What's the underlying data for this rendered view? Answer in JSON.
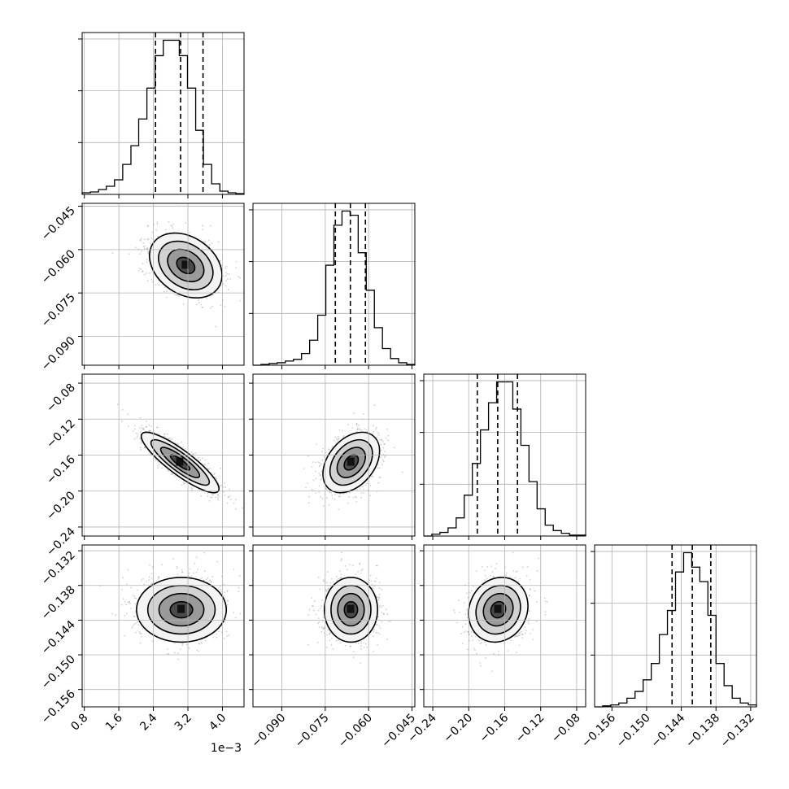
{
  "chart_data": {
    "type": "corner",
    "title": "",
    "offset_text": "1e−3",
    "parameters": [
      {
        "range": [
          0.00075,
          0.0045
        ],
        "ticks": [
          0.0008,
          0.0016,
          0.0024,
          0.0032,
          0.004
        ],
        "tick_labels": [
          "0.8",
          "1.6",
          "2.4",
          "3.2",
          "4.0"
        ],
        "quantiles": [
          0.00245,
          0.00303,
          0.00355
        ],
        "hist_bins": [
          0.00075,
          0.00094,
          0.00113,
          0.00131,
          0.0015,
          0.00169,
          0.00188,
          0.00206,
          0.00225,
          0.00244,
          0.00263,
          0.00281,
          0.003,
          0.00319,
          0.00338,
          0.00356,
          0.00375,
          0.00394,
          0.00413,
          0.00431,
          0.0045
        ],
        "hist_counts": [
          2,
          3,
          6,
          10,
          18,
          37,
          60,
          93,
          131,
          171,
          190,
          190,
          171,
          131,
          79,
          37,
          13,
          4,
          2,
          1
        ]
      },
      {
        "range": [
          -0.1,
          -0.044
        ],
        "ticks": [
          -0.09,
          -0.075,
          -0.06,
          -0.045
        ],
        "tick_labels": [
          "−0.090",
          "−0.075",
          "−0.060",
          "−0.045"
        ],
        "quantiles": [
          -0.0715,
          -0.0663,
          -0.0611
        ],
        "hist_bins": [
          -0.1,
          -0.0972,
          -0.0944,
          -0.0916,
          -0.0888,
          -0.086,
          -0.0832,
          -0.0804,
          -0.0776,
          -0.0748,
          -0.072,
          -0.0692,
          -0.0664,
          -0.0636,
          -0.0608,
          -0.058,
          -0.0552,
          -0.0524,
          -0.0496,
          -0.0468,
          -0.044
        ],
        "hist_counts": [
          0,
          1,
          2,
          3,
          5,
          7,
          14,
          30,
          60,
          120,
          168,
          185,
          180,
          135,
          90,
          45,
          20,
          8,
          3,
          1
        ]
      },
      {
        "range": [
          -0.25,
          -0.07
        ],
        "ticks": [
          -0.24,
          -0.2,
          -0.16,
          -0.12,
          -0.08
        ],
        "tick_labels": [
          "−0.24",
          "−0.20",
          "−0.16",
          "−0.12",
          "−0.08"
        ],
        "quantiles": [
          -0.1905,
          -0.1678,
          -0.1458
        ],
        "hist_bins": [
          -0.25,
          -0.241,
          -0.232,
          -0.223,
          -0.214,
          -0.205,
          -0.196,
          -0.187,
          -0.178,
          -0.169,
          -0.16,
          -0.151,
          -0.142,
          -0.133,
          -0.124,
          -0.115,
          -0.106,
          -0.097,
          -0.088,
          -0.079,
          -0.07
        ],
        "hist_counts": [
          0,
          2,
          4,
          9,
          20,
          45,
          80,
          117,
          147,
          170,
          170,
          140,
          100,
          60,
          30,
          12,
          6,
          3,
          1,
          1
        ]
      },
      {
        "range": [
          -0.159,
          -0.131
        ],
        "ticks": [
          -0.156,
          -0.15,
          -0.144,
          -0.138,
          -0.132
        ],
        "tick_labels": [
          "−0.156",
          "−0.150",
          "−0.144",
          "−0.138",
          "−0.132"
        ],
        "quantiles": [
          -0.1456,
          -0.1421,
          -0.1389
        ],
        "hist_bins": [
          -0.159,
          -0.1576,
          -0.1562,
          -0.1548,
          -0.1534,
          -0.152,
          -0.1506,
          -0.1492,
          -0.1478,
          -0.1464,
          -0.145,
          -0.1436,
          -0.1422,
          -0.1408,
          -0.1394,
          -0.138,
          -0.1366,
          -0.1352,
          -0.1338,
          -0.1324,
          -0.131
        ],
        "hist_counts": [
          0,
          1,
          2,
          4,
          9,
          16,
          28,
          45,
          75,
          100,
          140,
          160,
          145,
          130,
          95,
          45,
          22,
          9,
          4,
          2
        ]
      }
    ],
    "pairs": [
      {
        "x": 0,
        "y": 1,
        "center": [
          0.00315,
          -0.0655
        ],
        "spread": [
          0.00042,
          0.0056
        ],
        "rho": -0.3
      },
      {
        "x": 0,
        "y": 2,
        "center": [
          0.00302,
          -0.1682
        ],
        "spread": [
          0.00045,
          0.0168
        ],
        "rho": -0.87
      },
      {
        "x": 1,
        "y": 2,
        "center": [
          -0.066,
          -0.1682
        ],
        "spread": [
          0.0049,
          0.0168
        ],
        "rho": 0.38
      },
      {
        "x": 0,
        "y": 3,
        "center": [
          0.00305,
          -0.1422
        ],
        "spread": [
          0.00052,
          0.0028
        ],
        "rho": 0.0
      },
      {
        "x": 1,
        "y": 3,
        "center": [
          -0.0661,
          -0.1422
        ],
        "spread": [
          0.0046,
          0.0028
        ],
        "rho": 0.0
      },
      {
        "x": 2,
        "y": 3,
        "center": [
          -0.1672,
          -0.1422
        ],
        "spread": [
          0.0165,
          0.0028
        ],
        "rho": 0.12
      }
    ],
    "contour_levels_sigma": [
      0.5,
      1.0,
      1.5,
      2.0
    ],
    "grid": true
  }
}
